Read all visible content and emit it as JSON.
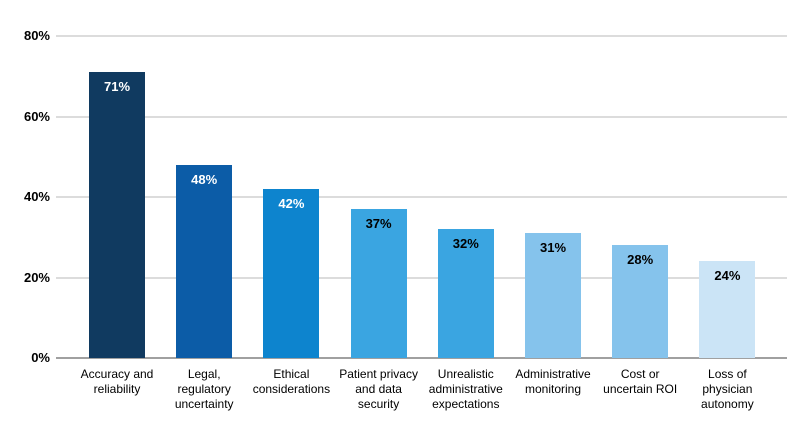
{
  "chart_data": {
    "type": "bar",
    "title": "",
    "xlabel": "",
    "ylabel": "",
    "ylim": [
      0,
      80
    ],
    "yticks": [
      80,
      60,
      40,
      20,
      0
    ],
    "ytick_labels": [
      "80%",
      "60%",
      "40%",
      "20%",
      "0%"
    ],
    "grid": "horizontal",
    "legend": "none",
    "background": "#ffffff",
    "gridline_color": "#dcdcdc",
    "axis_line_color": "#a0a0a0",
    "text_color": "#000000",
    "categories": [
      "Accuracy and reliability",
      "Legal, regulatory uncertainty",
      "Ethical considerations",
      "Patient privacy and data security",
      "Unrealistic administrative expectations",
      "Administrative monitoring",
      "Cost or uncertain ROI",
      "Loss of physician autonomy"
    ],
    "category_lines": [
      [
        "Accuracy and",
        "reliability"
      ],
      [
        "Legal,",
        "regulatory",
        "uncertainty"
      ],
      [
        "Ethical",
        "considerations"
      ],
      [
        "Patient privacy",
        "and data",
        "security"
      ],
      [
        "Unrealistic",
        "administrative",
        "expectations"
      ],
      [
        "Administrative",
        "monitoring"
      ],
      [
        "Cost or",
        "uncertain ROI"
      ],
      [
        "Loss of",
        "physician",
        "autonomy"
      ]
    ],
    "values": [
      71,
      48,
      42,
      37,
      32,
      31,
      28,
      24
    ],
    "value_labels": [
      "71%",
      "48%",
      "42%",
      "37%",
      "32%",
      "31%",
      "28%",
      "24%"
    ],
    "bar_colors": [
      "#103a60",
      "#0c5ca7",
      "#0d84ce",
      "#3aa5e1",
      "#3aa5e1",
      "#85c3ec",
      "#85c3ec",
      "#cbe4f6"
    ],
    "value_label_colors": [
      "#ffffff",
      "#ffffff",
      "#ffffff",
      "#000000",
      "#000000",
      "#000000",
      "#000000",
      "#000000"
    ]
  }
}
